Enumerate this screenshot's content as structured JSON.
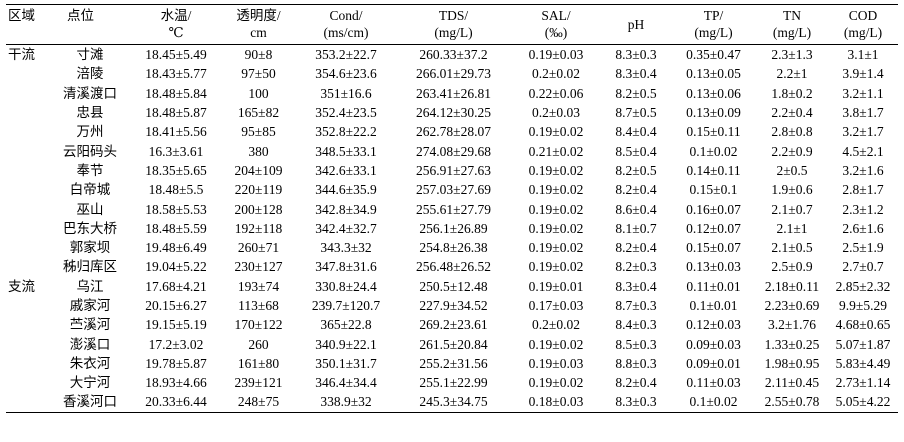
{
  "header": {
    "region": "区域",
    "site": "点位",
    "water_temp": [
      "水温/",
      "℃"
    ],
    "transparency": [
      "透明度/",
      "cm"
    ],
    "cond": [
      "Cond/",
      "(ms/cm)"
    ],
    "tds": [
      "TDS/",
      "(mg/L)"
    ],
    "sal": [
      "SAL/",
      "(‰)"
    ],
    "ph": [
      "pH"
    ],
    "tp": [
      "TP/",
      "(mg/L)"
    ],
    "tn": [
      "TN",
      "(mg/L)"
    ],
    "cod": [
      "COD",
      "(mg/L)"
    ]
  },
  "rows": [
    {
      "region": "干流",
      "site": "寸滩",
      "temp": "18.45±5.49",
      "trans": "90±8",
      "cond": "353.2±22.7",
      "tds": "260.33±37.2",
      "sal": "0.19±0.03",
      "ph": "8.3±0.3",
      "tp": "0.35±0.47",
      "tn": "2.3±1.3",
      "cod": "3.1±1"
    },
    {
      "region": "",
      "site": "涪陵",
      "temp": "18.43±5.77",
      "trans": "97±50",
      "cond": "354.6±23.6",
      "tds": "266.01±29.73",
      "sal": "0.2±0.02",
      "ph": "8.3±0.4",
      "tp": "0.13±0.05",
      "tn": "2.2±1",
      "cod": "3.9±1.4"
    },
    {
      "region": "",
      "site": "清溪渡口",
      "temp": "18.48±5.84",
      "trans": "100",
      "cond": "351±16.6",
      "tds": "263.41±26.81",
      "sal": "0.22±0.06",
      "ph": "8.2±0.5",
      "tp": "0.13±0.06",
      "tn": "1.8±0.2",
      "cod": "3.2±1.1"
    },
    {
      "region": "",
      "site": "忠县",
      "temp": "18.48±5.87",
      "trans": "165±82",
      "cond": "352.4±23.5",
      "tds": "264.12±30.25",
      "sal": "0.2±0.03",
      "ph": "8.7±0.5",
      "tp": "0.13±0.09",
      "tn": "2.2±0.4",
      "cod": "3.8±1.7"
    },
    {
      "region": "",
      "site": "万州",
      "temp": "18.41±5.56",
      "trans": "95±85",
      "cond": "352.8±22.2",
      "tds": "262.78±28.07",
      "sal": "0.19±0.02",
      "ph": "8.4±0.4",
      "tp": "0.15±0.11",
      "tn": "2.8±0.8",
      "cod": "3.2±1.7"
    },
    {
      "region": "",
      "site": "云阳码头",
      "temp": "16.3±3.61",
      "trans": "380",
      "cond": "348.5±33.1",
      "tds": "274.08±29.68",
      "sal": "0.21±0.02",
      "ph": "8.5±0.4",
      "tp": "0.1±0.02",
      "tn": "2.2±0.9",
      "cod": "4.5±2.1"
    },
    {
      "region": "",
      "site": "奉节",
      "temp": "18.35±5.65",
      "trans": "204±109",
      "cond": "342.6±33.1",
      "tds": "256.91±27.63",
      "sal": "0.19±0.02",
      "ph": "8.2±0.5",
      "tp": "0.14±0.11",
      "tn": "2±0.5",
      "cod": "3.2±1.6"
    },
    {
      "region": "",
      "site": "白帝城",
      "temp": "18.48±5.5",
      "trans": "220±119",
      "cond": "344.6±35.9",
      "tds": "257.03±27.69",
      "sal": "0.19±0.02",
      "ph": "8.2±0.4",
      "tp": "0.15±0.1",
      "tn": "1.9±0.6",
      "cod": "2.8±1.7"
    },
    {
      "region": "",
      "site": "巫山",
      "temp": "18.58±5.53",
      "trans": "200±128",
      "cond": "342.8±34.9",
      "tds": "255.61±27.79",
      "sal": "0.19±0.02",
      "ph": "8.6±0.4",
      "tp": "0.16±0.07",
      "tn": "2.1±0.7",
      "cod": "2.3±1.2"
    },
    {
      "region": "",
      "site": "巴东大桥",
      "temp": "18.48±5.59",
      "trans": "192±118",
      "cond": "342.4±32.7",
      "tds": "256.1±26.89",
      "sal": "0.19±0.02",
      "ph": "8.1±0.7",
      "tp": "0.12±0.07",
      "tn": "2.1±1",
      "cod": "2.6±1.6"
    },
    {
      "region": "",
      "site": "郭家坝",
      "temp": "19.48±6.49",
      "trans": "260±71",
      "cond": "343.3±32",
      "tds": "254.8±26.38",
      "sal": "0.19±0.02",
      "ph": "8.2±0.4",
      "tp": "0.15±0.07",
      "tn": "2.1±0.5",
      "cod": "2.5±1.9"
    },
    {
      "region": "",
      "site": "秭归库区",
      "temp": "19.04±5.22",
      "trans": "230±127",
      "cond": "347.8±31.6",
      "tds": "256.48±26.52",
      "sal": "0.19±0.02",
      "ph": "8.2±0.3",
      "tp": "0.13±0.03",
      "tn": "2.5±0.9",
      "cod": "2.7±0.7"
    },
    {
      "region": "支流",
      "site": "乌江",
      "temp": "17.68±4.21",
      "trans": "193±74",
      "cond": "330.8±24.4",
      "tds": "250.5±12.48",
      "sal": "0.19±0.01",
      "ph": "8.3±0.4",
      "tp": "0.11±0.01",
      "tn": "2.18±0.11",
      "cod": "2.85±2.32"
    },
    {
      "region": "",
      "site": "戚家河",
      "temp": "20.15±6.27",
      "trans": "113±68",
      "cond": "239.7±120.7",
      "tds": "227.9±34.52",
      "sal": "0.17±0.03",
      "ph": "8.7±0.3",
      "tp": "0.1±0.01",
      "tn": "2.23±0.69",
      "cod": "9.9±5.29"
    },
    {
      "region": "",
      "site": "苎溪河",
      "temp": "19.15±5.19",
      "trans": "170±122",
      "cond": "365±22.8",
      "tds": "269.2±23.61",
      "sal": "0.2±0.02",
      "ph": "8.4±0.3",
      "tp": "0.12±0.03",
      "tn": "3.2±1.76",
      "cod": "4.68±0.65"
    },
    {
      "region": "",
      "site": "澎溪口",
      "temp": "17.2±3.02",
      "trans": "260",
      "cond": "340.9±22.1",
      "tds": "261.5±20.84",
      "sal": "0.19±0.02",
      "ph": "8.5±0.3",
      "tp": "0.09±0.03",
      "tn": "1.33±0.25",
      "cod": "5.07±1.87"
    },
    {
      "region": "",
      "site": "朱衣河",
      "temp": "19.78±5.87",
      "trans": "161±80",
      "cond": "350.1±31.7",
      "tds": "255.2±31.56",
      "sal": "0.19±0.03",
      "ph": "8.8±0.3",
      "tp": "0.09±0.01",
      "tn": "1.98±0.95",
      "cod": "5.83±4.49"
    },
    {
      "region": "",
      "site": "大宁河",
      "temp": "18.93±4.66",
      "trans": "239±121",
      "cond": "346.4±34.4",
      "tds": "255.1±22.99",
      "sal": "0.19±0.02",
      "ph": "8.2±0.4",
      "tp": "0.11±0.03",
      "tn": "2.11±0.45",
      "cod": "2.73±1.14"
    },
    {
      "region": "",
      "site": "香溪河口",
      "temp": "20.33±6.44",
      "trans": "248±75",
      "cond": "338.9±32",
      "tds": "245.3±34.75",
      "sal": "0.18±0.03",
      "ph": "8.3±0.3",
      "tp": "0.1±0.02",
      "tn": "2.55±0.78",
      "cod": "5.05±4.22"
    }
  ]
}
